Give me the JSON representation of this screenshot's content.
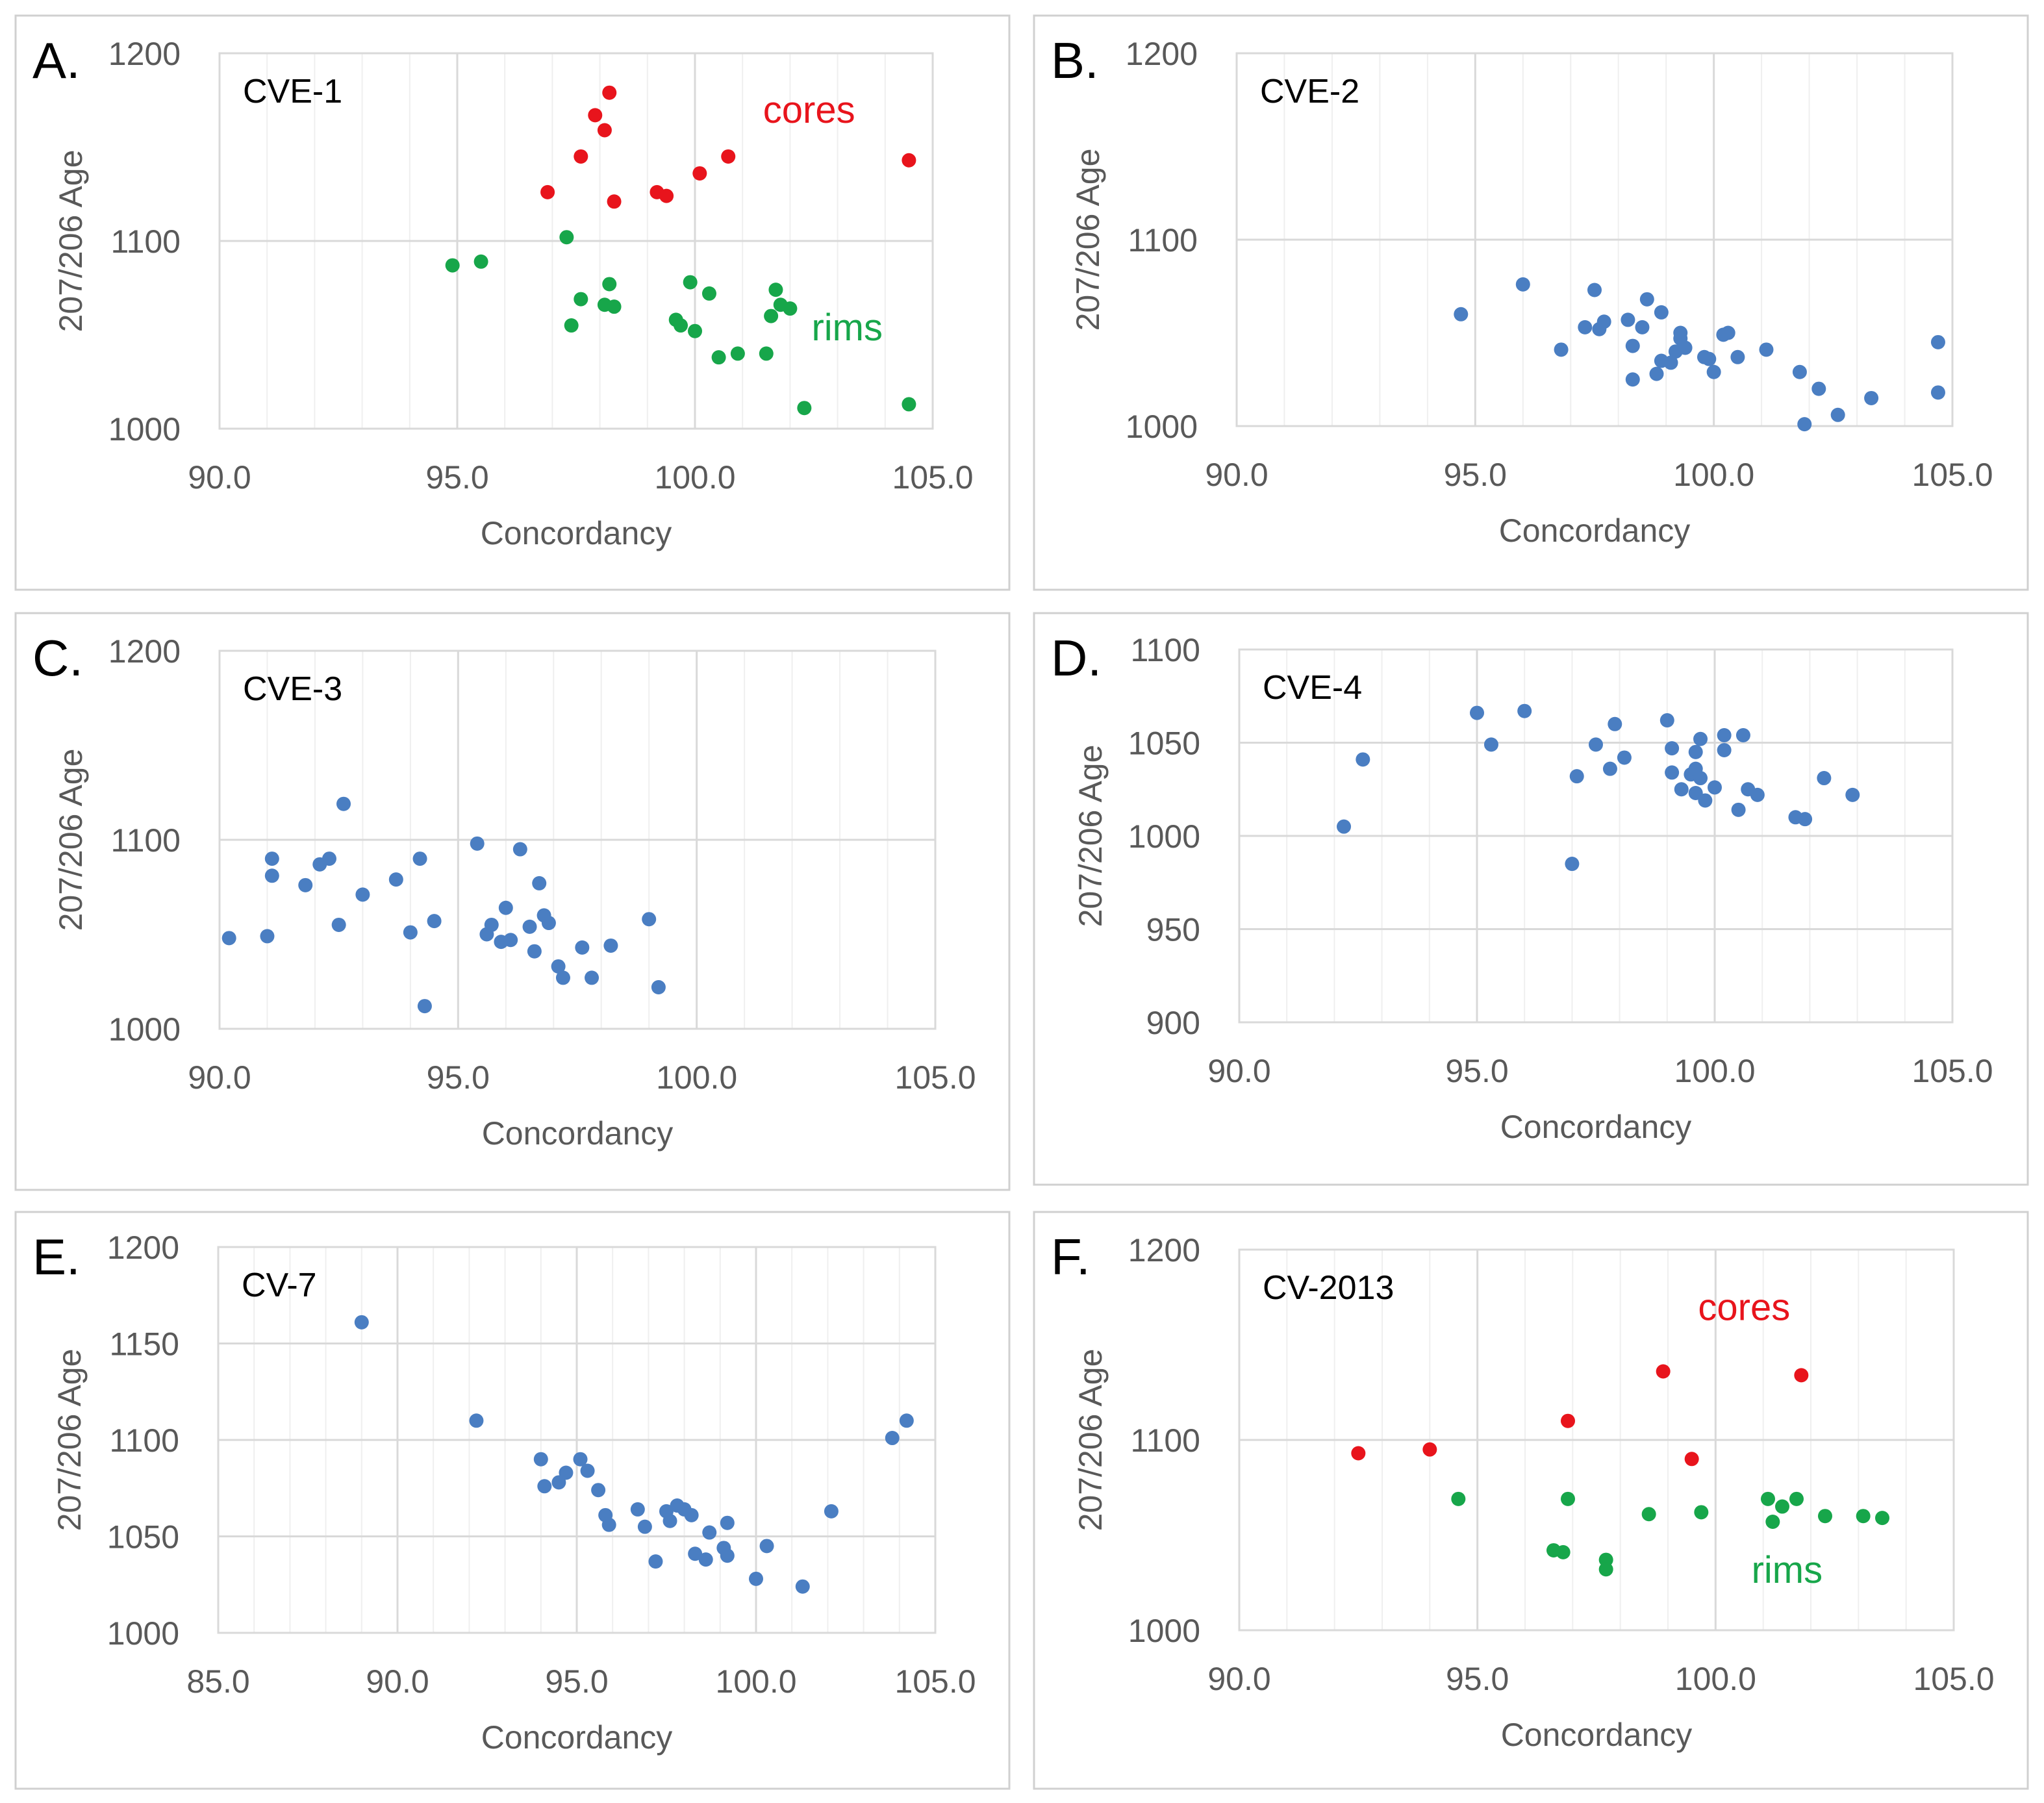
{
  "figure": {
    "title": "Concordancy vs 207/206 Age scatter plots (panels A-F)"
  },
  "colors": {
    "core": "#e8141c",
    "rim": "#17a64a",
    "blue": "#4a7ec2",
    "grid": "#d9d9d9",
    "frame": "#d0d0d0",
    "text": "#595959"
  },
  "chart_data": [
    {
      "type": "scatter",
      "panel_letter": "A.",
      "sample": "CVE-1",
      "xlabel": "Concordancy",
      "ylabel": "207/206 Age",
      "xlim": [
        90,
        105
      ],
      "ylim": [
        1000,
        1200
      ],
      "xticks": [
        90,
        95,
        100,
        105
      ],
      "xtick_labels": [
        "90.0",
        "95.0",
        "100.0",
        "105.0"
      ],
      "yticks": [
        1000,
        1100,
        1200
      ],
      "ytick_labels": [
        "1000",
        "1100",
        "1200"
      ],
      "annotations": [
        {
          "text": "cores",
          "color": "core",
          "x": 102.4,
          "y": 1163
        },
        {
          "text": "rims",
          "color": "rim",
          "x": 103.2,
          "y": 1047
        }
      ],
      "series": [
        {
          "name": "cores",
          "color": "core",
          "points": [
            [
              96.9,
              1126
            ],
            [
              97.6,
              1145
            ],
            [
              97.9,
              1167
            ],
            [
              98.1,
              1159
            ],
            [
              98.2,
              1179
            ],
            [
              98.3,
              1121
            ],
            [
              99.2,
              1126
            ],
            [
              99.4,
              1124
            ],
            [
              100.1,
              1136
            ],
            [
              100.7,
              1145
            ],
            [
              104.5,
              1143
            ]
          ]
        },
        {
          "name": "rims",
          "color": "rim",
          "points": [
            [
              94.9,
              1087
            ],
            [
              95.5,
              1089
            ],
            [
              97.3,
              1102
            ],
            [
              97.4,
              1055
            ],
            [
              97.6,
              1069
            ],
            [
              98.1,
              1066
            ],
            [
              98.2,
              1077
            ],
            [
              98.3,
              1065
            ],
            [
              99.6,
              1058
            ],
            [
              99.7,
              1055
            ],
            [
              99.9,
              1078
            ],
            [
              100.0,
              1052
            ],
            [
              100.3,
              1072
            ],
            [
              100.5,
              1038
            ],
            [
              100.9,
              1040
            ],
            [
              101.5,
              1040
            ],
            [
              101.6,
              1060
            ],
            [
              101.7,
              1074
            ],
            [
              101.8,
              1066
            ],
            [
              102.0,
              1064
            ],
            [
              102.3,
              1011
            ],
            [
              104.5,
              1013
            ]
          ]
        }
      ]
    },
    {
      "type": "scatter",
      "panel_letter": "B.",
      "sample": "CVE-2",
      "xlabel": "Concordancy",
      "ylabel": "207/206 Age",
      "xlim": [
        90,
        105
      ],
      "ylim": [
        1000,
        1200
      ],
      "xticks": [
        90,
        95,
        100,
        105
      ],
      "xtick_labels": [
        "90.0",
        "95.0",
        "100.0",
        "105.0"
      ],
      "yticks": [
        1000,
        1100,
        1200
      ],
      "ytick_labels": [
        "1000",
        "1100",
        "1200"
      ],
      "annotations": [],
      "series": [
        {
          "name": "samples",
          "color": "blue",
          "points": [
            [
              94.7,
              1060
            ],
            [
              96.0,
              1076
            ],
            [
              96.8,
              1041
            ],
            [
              97.3,
              1053
            ],
            [
              97.5,
              1073
            ],
            [
              97.6,
              1052
            ],
            [
              97.7,
              1056
            ],
            [
              98.2,
              1057
            ],
            [
              98.3,
              1043
            ],
            [
              98.3,
              1025
            ],
            [
              98.5,
              1053
            ],
            [
              98.6,
              1068
            ],
            [
              98.8,
              1028
            ],
            [
              98.9,
              1061
            ],
            [
              98.9,
              1035
            ],
            [
              99.1,
              1034
            ],
            [
              99.2,
              1040
            ],
            [
              99.3,
              1050
            ],
            [
              99.3,
              1047
            ],
            [
              99.4,
              1042
            ],
            [
              99.8,
              1037
            ],
            [
              99.9,
              1036
            ],
            [
              100.0,
              1029
            ],
            [
              100.2,
              1049
            ],
            [
              100.3,
              1050
            ],
            [
              100.5,
              1037
            ],
            [
              101.1,
              1041
            ],
            [
              101.8,
              1029
            ],
            [
              101.9,
              1001
            ],
            [
              102.2,
              1020
            ],
            [
              102.6,
              1006
            ],
            [
              103.3,
              1015
            ],
            [
              104.7,
              1045
            ],
            [
              104.7,
              1018
            ]
          ]
        }
      ]
    },
    {
      "type": "scatter",
      "panel_letter": "C.",
      "sample": "CVE-3",
      "xlabel": "Concordancy",
      "ylabel": "207/206 Age",
      "xlim": [
        90,
        105
      ],
      "ylim": [
        1000,
        1200
      ],
      "xticks": [
        90,
        95,
        100,
        105
      ],
      "xtick_labels": [
        "90.0",
        "95.0",
        "100.0",
        "105.0"
      ],
      "yticks": [
        1000,
        1100,
        1200
      ],
      "ytick_labels": [
        "1000",
        "1100",
        "1200"
      ],
      "annotations": [],
      "series": [
        {
          "name": "samples",
          "color": "blue",
          "points": [
            [
              90.2,
              1048
            ],
            [
              91.0,
              1049
            ],
            [
              91.1,
              1081
            ],
            [
              91.1,
              1090
            ],
            [
              91.8,
              1076
            ],
            [
              92.1,
              1087
            ],
            [
              92.3,
              1090
            ],
            [
              92.5,
              1055
            ],
            [
              92.6,
              1119
            ],
            [
              93.0,
              1071
            ],
            [
              93.7,
              1079
            ],
            [
              94.0,
              1051
            ],
            [
              94.2,
              1090
            ],
            [
              94.3,
              1012
            ],
            [
              94.5,
              1057
            ],
            [
              95.4,
              1098
            ],
            [
              95.6,
              1050
            ],
            [
              95.7,
              1055
            ],
            [
              95.9,
              1046
            ],
            [
              96.0,
              1064
            ],
            [
              96.1,
              1047
            ],
            [
              96.3,
              1095
            ],
            [
              96.5,
              1054
            ],
            [
              96.6,
              1041
            ],
            [
              96.7,
              1077
            ],
            [
              96.8,
              1060
            ],
            [
              96.9,
              1056
            ],
            [
              97.1,
              1033
            ],
            [
              97.2,
              1027
            ],
            [
              97.6,
              1043
            ],
            [
              97.8,
              1027
            ],
            [
              98.2,
              1044
            ],
            [
              99.0,
              1058
            ],
            [
              99.2,
              1022
            ]
          ]
        }
      ]
    },
    {
      "type": "scatter",
      "panel_letter": "D.",
      "sample": "CVE-4",
      "xlabel": "Concordancy",
      "ylabel": "207/206 Age",
      "xlim": [
        90,
        105
      ],
      "ylim": [
        900,
        1100
      ],
      "xticks": [
        90,
        95,
        100,
        105
      ],
      "xtick_labels": [
        "90.0",
        "95.0",
        "100.0",
        "105.0"
      ],
      "yticks": [
        900,
        950,
        1000,
        1050,
        1100
      ],
      "ytick_labels": [
        "900",
        "950",
        "1000",
        "1050",
        "1100"
      ],
      "annotations": [],
      "series": [
        {
          "name": "samples",
          "color": "blue",
          "points": [
            [
              92.2,
              1005
            ],
            [
              92.6,
              1041
            ],
            [
              95.0,
              1066
            ],
            [
              95.3,
              1049
            ],
            [
              96.0,
              1067
            ],
            [
              97.0,
              985
            ],
            [
              97.1,
              1032
            ],
            [
              97.5,
              1049
            ],
            [
              97.8,
              1036
            ],
            [
              97.9,
              1060
            ],
            [
              98.1,
              1042
            ],
            [
              99.0,
              1062
            ],
            [
              99.1,
              1047
            ],
            [
              99.1,
              1034
            ],
            [
              99.3,
              1025
            ],
            [
              99.5,
              1033
            ],
            [
              99.6,
              1036
            ],
            [
              99.6,
              1023
            ],
            [
              99.6,
              1045
            ],
            [
              99.7,
              1052
            ],
            [
              99.7,
              1031
            ],
            [
              99.8,
              1019
            ],
            [
              100.0,
              1026
            ],
            [
              100.2,
              1046
            ],
            [
              100.2,
              1054
            ],
            [
              100.5,
              1014
            ],
            [
              100.6,
              1054
            ],
            [
              100.7,
              1025
            ],
            [
              100.9,
              1022
            ],
            [
              101.7,
              1010
            ],
            [
              101.9,
              1009
            ],
            [
              102.3,
              1031
            ],
            [
              102.9,
              1022
            ]
          ]
        }
      ]
    },
    {
      "type": "scatter",
      "panel_letter": "E.",
      "sample": "CV-7",
      "xlabel": "Concordancy",
      "ylabel": "207/206 Age",
      "xlim": [
        85,
        105
      ],
      "ylim": [
        1000,
        1200
      ],
      "xticks": [
        85,
        90,
        95,
        100,
        105
      ],
      "xtick_labels": [
        "85.0",
        "90.0",
        "95.0",
        "100.0",
        "105.0"
      ],
      "yticks": [
        1000,
        1050,
        1100,
        1150,
        1200
      ],
      "ytick_labels": [
        "1000",
        "1050",
        "1100",
        "1150",
        "1200"
      ],
      "annotations": [],
      "series": [
        {
          "name": "samples",
          "color": "blue",
          "points": [
            [
              89.0,
              1161
            ],
            [
              92.2,
              1110
            ],
            [
              94.0,
              1090
            ],
            [
              94.1,
              1076
            ],
            [
              94.5,
              1078
            ],
            [
              94.7,
              1083
            ],
            [
              95.1,
              1090
            ],
            [
              95.3,
              1084
            ],
            [
              95.6,
              1074
            ],
            [
              95.8,
              1061
            ],
            [
              95.9,
              1056
            ],
            [
              96.7,
              1064
            ],
            [
              96.9,
              1055
            ],
            [
              97.2,
              1037
            ],
            [
              97.5,
              1063
            ],
            [
              97.6,
              1058
            ],
            [
              97.8,
              1066
            ],
            [
              98.0,
              1064
            ],
            [
              98.2,
              1061
            ],
            [
              98.3,
              1041
            ],
            [
              98.6,
              1038
            ],
            [
              98.7,
              1052
            ],
            [
              99.1,
              1044
            ],
            [
              99.2,
              1040
            ],
            [
              99.2,
              1057
            ],
            [
              100.0,
              1028
            ],
            [
              100.3,
              1045
            ],
            [
              101.3,
              1024
            ],
            [
              102.1,
              1063
            ],
            [
              103.8,
              1101
            ],
            [
              104.2,
              1110
            ]
          ]
        }
      ]
    },
    {
      "type": "scatter",
      "panel_letter": "F.",
      "sample": "CV-2013",
      "xlabel": "Concordancy",
      "ylabel": "207/206 Age",
      "xlim": [
        90,
        105
      ],
      "ylim": [
        1000,
        1200
      ],
      "xticks": [
        90,
        95,
        100,
        105
      ],
      "xtick_labels": [
        "90.0",
        "95.0",
        "100.0",
        "105.0"
      ],
      "yticks": [
        1000,
        1100,
        1200
      ],
      "ytick_labels": [
        "1000",
        "1100",
        "1200"
      ],
      "annotations": [
        {
          "text": "cores",
          "color": "core",
          "x": 100.6,
          "y": 1163
        },
        {
          "text": "rims",
          "color": "rim",
          "x": 101.5,
          "y": 1025
        }
      ],
      "series": [
        {
          "name": "cores",
          "color": "core",
          "points": [
            [
              92.5,
              1093
            ],
            [
              94.0,
              1095
            ],
            [
              96.9,
              1110
            ],
            [
              98.9,
              1136
            ],
            [
              99.5,
              1090
            ],
            [
              101.8,
              1134
            ]
          ]
        },
        {
          "name": "rims",
          "color": "rim",
          "points": [
            [
              94.6,
              1069
            ],
            [
              96.6,
              1042
            ],
            [
              96.8,
              1041
            ],
            [
              96.9,
              1069
            ],
            [
              97.7,
              1037
            ],
            [
              97.7,
              1032
            ],
            [
              98.6,
              1061
            ],
            [
              99.7,
              1062
            ],
            [
              101.1,
              1069
            ],
            [
              101.2,
              1057
            ],
            [
              101.4,
              1065
            ],
            [
              101.7,
              1069
            ],
            [
              102.3,
              1060
            ],
            [
              103.1,
              1060
            ],
            [
              103.5,
              1059
            ]
          ]
        }
      ]
    }
  ]
}
